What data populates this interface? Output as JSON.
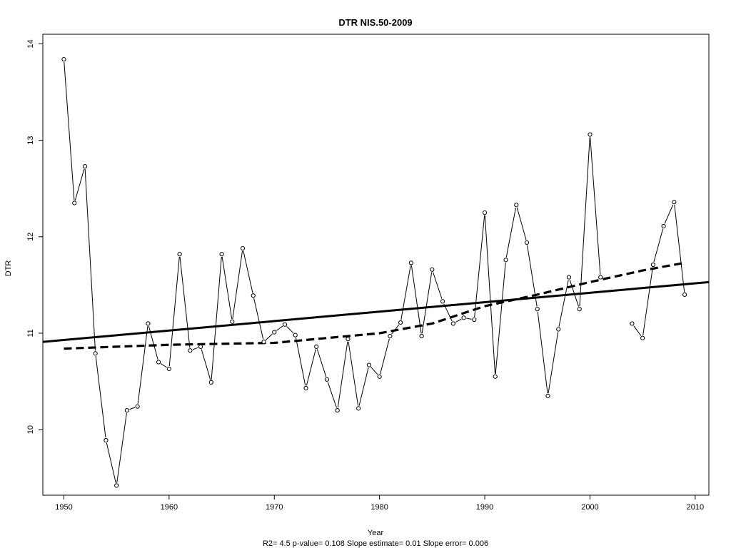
{
  "chart_data": {
    "type": "line",
    "title": "DTR   NIS.50-2009",
    "xlabel": "Year",
    "ylabel": "DTR",
    "footer": "R2= 4.5  p-value= 0.108  Slope estimate= 0.01  Slope error= 0.006",
    "xlim": [
      1948,
      2011.3
    ],
    "ylim": [
      9.32,
      14.1
    ],
    "x_ticks": [
      1950,
      1960,
      1970,
      1980,
      1990,
      2000,
      2010
    ],
    "y_ticks": [
      10,
      11,
      12,
      13,
      14
    ],
    "grid": false,
    "series": [
      {
        "style": "line-with-open-circles",
        "color": "#000000",
        "x": [
          1950,
          1951,
          1952,
          1953,
          1954,
          1955,
          1956,
          1957,
          1958,
          1959,
          1960,
          1961,
          1962,
          1963,
          1964,
          1965,
          1966,
          1967,
          1968,
          1969,
          1970,
          1971,
          1972,
          1973,
          1974,
          1975,
          1976,
          1977,
          1978,
          1979,
          1980,
          1981,
          1982,
          1983,
          1984,
          1985,
          1986,
          1987,
          1988,
          1989,
          1990,
          1991,
          1992,
          1993,
          1994,
          1995,
          1996,
          1997,
          1998,
          1999,
          2000,
          2001,
          2002,
          2003,
          2004,
          2005,
          2006,
          2007,
          2008,
          2009
        ],
        "y": [
          13.84,
          12.35,
          12.73,
          10.79,
          9.89,
          9.42,
          10.2,
          10.24,
          11.1,
          10.7,
          10.63,
          11.82,
          10.82,
          10.86,
          10.49,
          11.82,
          11.12,
          11.88,
          11.39,
          10.91,
          11.01,
          11.09,
          10.98,
          10.43,
          10.86,
          10.52,
          10.2,
          10.94,
          10.22,
          10.67,
          10.55,
          10.97,
          11.11,
          11.73,
          10.97,
          11.66,
          11.33,
          11.1,
          11.16,
          11.14,
          12.25,
          10.55,
          11.76,
          12.33,
          11.94,
          11.25,
          10.35,
          11.04,
          11.58,
          11.25,
          13.06,
          11.58,
          null,
          null,
          11.1,
          10.95,
          11.71,
          12.11,
          12.36,
          11.4
        ]
      },
      {
        "style": "solid-thick-trend",
        "color": "#000000",
        "x": [
          1948,
          2011.3
        ],
        "y": [
          10.91,
          11.53
        ]
      },
      {
        "style": "dashed-thick-smooth",
        "color": "#000000",
        "x": [
          1950,
          1955,
          1960,
          1965,
          1970,
          1975,
          1980,
          1985,
          1990,
          1995,
          2000,
          2005,
          2009
        ],
        "y": [
          10.84,
          10.86,
          10.88,
          10.89,
          10.9,
          10.95,
          11.0,
          11.1,
          11.28,
          11.4,
          11.53,
          11.65,
          11.73
        ]
      }
    ]
  }
}
